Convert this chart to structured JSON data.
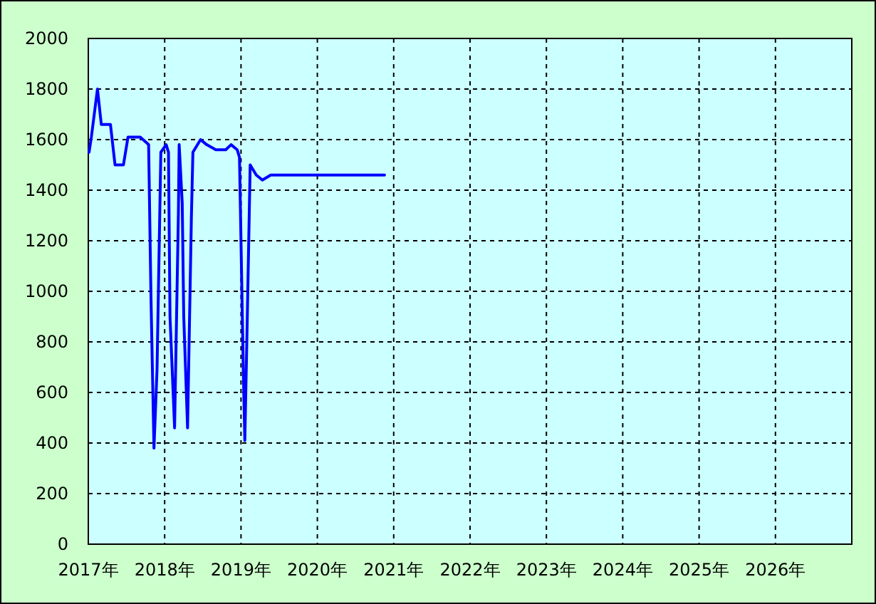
{
  "chart_data": {
    "type": "line",
    "color": "#0000ff",
    "grid": true,
    "x": [
      2017.01,
      2017.04,
      2017.12,
      2017.17,
      2017.29,
      2017.35,
      2017.46,
      2017.52,
      2017.68,
      2017.79,
      2017.82,
      2017.86,
      2017.9,
      2017.95,
      2018.02,
      2018.05,
      2018.07,
      2018.13,
      2018.18,
      2018.19,
      2018.23,
      2018.25,
      2018.3,
      2018.35,
      2018.37,
      2018.47,
      2018.55,
      2018.67,
      2018.8,
      2018.87,
      2018.95,
      2018.98,
      2019.03,
      2019.05,
      2019.08,
      2019.12,
      2019.2,
      2019.28,
      2019.39,
      2020.88
    ],
    "values": [
      1550,
      1610,
      1800,
      1660,
      1660,
      1500,
      1500,
      1610,
      1610,
      1580,
      990,
      380,
      690,
      1550,
      1580,
      1550,
      900,
      460,
      1310,
      1580,
      1350,
      900,
      460,
      1290,
      1550,
      1600,
      1580,
      1560,
      1560,
      1580,
      1560,
      1530,
      690,
      410,
      860,
      1500,
      1460,
      1440,
      1460,
      1460
    ],
    "xlim": [
      2017,
      2027
    ],
    "ylim": [
      0,
      2000
    ],
    "xticks": [
      {
        "value": 2017,
        "label": "2017年"
      },
      {
        "value": 2018,
        "label": "2018年"
      },
      {
        "value": 2019,
        "label": "2019年"
      },
      {
        "value": 2020,
        "label": "2020年"
      },
      {
        "value": 2021,
        "label": "2021年"
      },
      {
        "value": 2022,
        "label": "2022年"
      },
      {
        "value": 2023,
        "label": "2023年"
      },
      {
        "value": 2024,
        "label": "2024年"
      },
      {
        "value": 2025,
        "label": "2025年"
      },
      {
        "value": 2026,
        "label": "2026年"
      }
    ],
    "yticks": [
      0,
      200,
      400,
      600,
      800,
      1000,
      1200,
      1400,
      1600,
      1800,
      2000
    ]
  }
}
